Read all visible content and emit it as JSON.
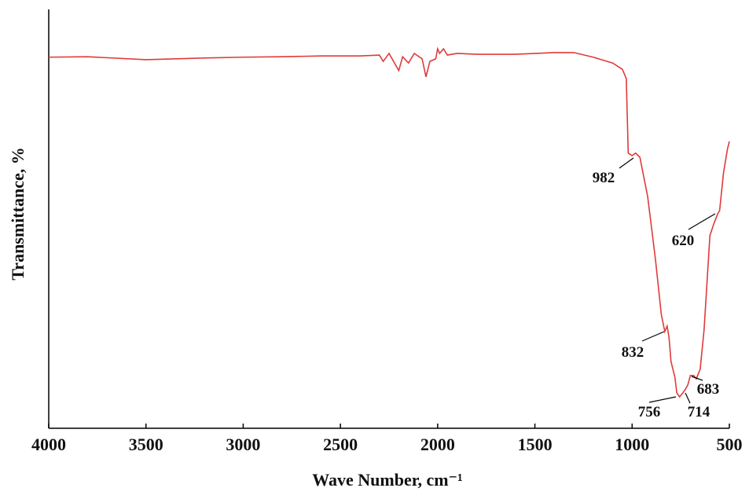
{
  "chart_data": {
    "type": "line",
    "x_label": "Wave Number, cm⁻¹",
    "y_label": "Transmittance, %",
    "x": [
      4000,
      3800,
      3500,
      3200,
      3000,
      2800,
      2600,
      2400,
      2300,
      2280,
      2250,
      2200,
      2180,
      2150,
      2120,
      2080,
      2060,
      2040,
      2010,
      2000,
      1990,
      1970,
      1950,
      1900,
      1800,
      1600,
      1400,
      1300,
      1200,
      1100,
      1050,
      1030,
      1020,
      1000,
      982,
      960,
      920,
      880,
      850,
      832,
      820,
      810,
      800,
      780,
      770,
      756,
      740,
      725,
      714,
      700,
      683,
      670,
      650,
      630,
      620,
      600,
      580,
      560,
      550,
      530,
      510,
      500
    ],
    "series": [
      {
        "name": "Transmittance",
        "color": "#e03a3a",
        "values": [
          88.6,
          88.7,
          88.0,
          88.4,
          88.6,
          88.7,
          88.9,
          88.9,
          89.1,
          87.6,
          89.5,
          85.4,
          88.7,
          87.2,
          89.5,
          88.2,
          83.9,
          87.6,
          88.2,
          90.6,
          89.5,
          90.6,
          89.1,
          89.5,
          89.3,
          89.3,
          89.7,
          89.7,
          88.6,
          87.2,
          85.7,
          83.5,
          65.7,
          65.1,
          65.7,
          64.7,
          55.3,
          40.3,
          27.2,
          23.1,
          24.4,
          21.6,
          15.9,
          12.2,
          8.4,
          7.5,
          8.4,
          9.4,
          10.3,
          12.6,
          12.6,
          11.8,
          14.1,
          23.5,
          31.0,
          46.0,
          48.8,
          51.2,
          52.0,
          61.0,
          66.6,
          68.5
        ]
      }
    ],
    "xlim": [
      4000,
      500
    ],
    "ylim": [
      0,
      100
    ],
    "xticks": [
      4000,
      3500,
      3000,
      2500,
      2000,
      1500,
      1000,
      500
    ],
    "annotations": [
      "982",
      "832",
      "756",
      "714",
      "683",
      "620"
    ]
  }
}
